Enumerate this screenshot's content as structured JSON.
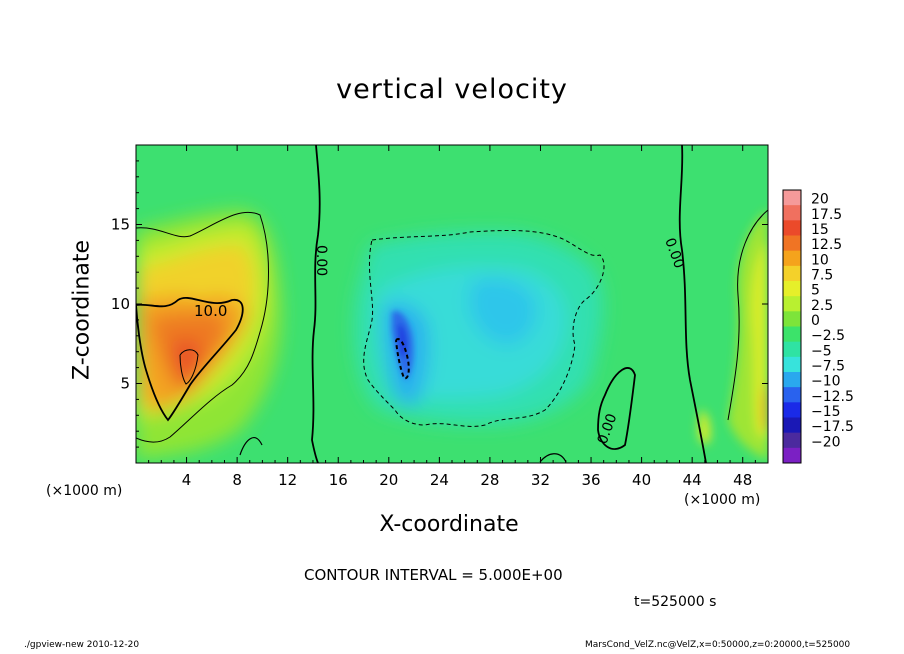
{
  "chart_data": {
    "type": "heatmap",
    "title": "vertical velocity",
    "xlabel": "X-coordinate",
    "ylabel": "Z-coordinate",
    "x_unit": "(×1000 m)",
    "xlim": [
      0,
      50
    ],
    "ylim": [
      0,
      20
    ],
    "x_ticks": [
      4,
      8,
      12,
      16,
      20,
      24,
      28,
      32,
      36,
      40,
      44,
      48
    ],
    "y_ticks": [
      5,
      10,
      15
    ],
    "colorbar": {
      "labels": [
        "20",
        "17.5",
        "15",
        "12.5",
        "10",
        "7.5",
        "5",
        "2.5",
        "0",
        "−2.5",
        "−5",
        "−7.5",
        "−10",
        "−12.5",
        "−15",
        "−17.5",
        "−20"
      ],
      "colors": [
        "#f59a9a",
        "#f0705f",
        "#eb4a2a",
        "#f07424",
        "#f5a31c",
        "#f4d12a",
        "#e6ef2a",
        "#b9f030",
        "#7de43a",
        "#3ce36a",
        "#2fe3a3",
        "#37e3dc",
        "#2aa8ee",
        "#2962ee",
        "#1a2ae8",
        "#1a18b5",
        "#4b2a9e",
        "#7b20c4"
      ]
    },
    "contour_labels": [
      "10.0",
      "0.00",
      "0.00",
      "0.00"
    ],
    "contour_interval": "CONTOUR INTERVAL = 5.000E+00",
    "time": "t=525000 s",
    "grid": false
  },
  "footer": {
    "left": "./gpview-new  2010-12-20",
    "right": "MarsCond_VelZ.nc@VelZ,x=0:50000,z=0:20000,t=525000"
  }
}
